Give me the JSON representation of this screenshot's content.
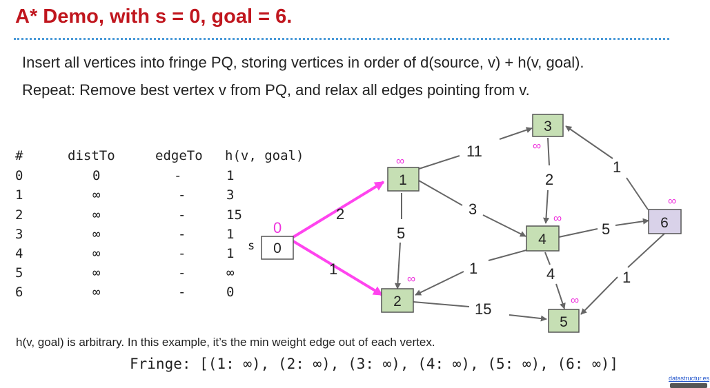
{
  "title": "A* Demo, with s = 0, goal = 6.",
  "instructions": [
    "Insert all vertices into fringe PQ, storing vertices in order of d(source, v) + h(v, goal).",
    "Repeat: Remove best vertex v from PQ, and relax all edges pointing from v."
  ],
  "table": {
    "headers": [
      "#",
      "distTo",
      "edgeTo",
      "h(v, goal)"
    ],
    "rows": [
      {
        "v": "0",
        "distTo": "0",
        "edgeTo": "-",
        "h": "1"
      },
      {
        "v": "1",
        "distTo": "∞",
        "edgeTo": "-",
        "h": "3"
      },
      {
        "v": "2",
        "distTo": "∞",
        "edgeTo": "-",
        "h": "15"
      },
      {
        "v": "3",
        "distTo": "∞",
        "edgeTo": "-",
        "h": "1"
      },
      {
        "v": "4",
        "distTo": "∞",
        "edgeTo": "-",
        "h": "1"
      },
      {
        "v": "5",
        "distTo": "∞",
        "edgeTo": "-",
        "h": "∞"
      },
      {
        "v": "6",
        "distTo": "∞",
        "edgeTo": "-",
        "h": "0"
      }
    ]
  },
  "graph": {
    "source_label": "s",
    "vertices": [
      {
        "id": "0",
        "dist": "0"
      },
      {
        "id": "1",
        "dist": "∞"
      },
      {
        "id": "2",
        "dist": "∞"
      },
      {
        "id": "3",
        "dist": "∞"
      },
      {
        "id": "4",
        "dist": "∞"
      },
      {
        "id": "5",
        "dist": "∞"
      },
      {
        "id": "6",
        "dist": "∞"
      }
    ],
    "edges": [
      {
        "from": "0",
        "to": "1",
        "weight": "2",
        "highlighted": true
      },
      {
        "from": "0",
        "to": "2",
        "weight": "1",
        "highlighted": true
      },
      {
        "from": "1",
        "to": "3",
        "weight": "11",
        "highlighted": false
      },
      {
        "from": "1",
        "to": "4",
        "weight": "3",
        "highlighted": false
      },
      {
        "from": "1",
        "to": "2",
        "weight": "5",
        "highlighted": false
      },
      {
        "from": "3",
        "to": "4",
        "weight": "2",
        "highlighted": false
      },
      {
        "from": "4",
        "to": "2",
        "weight": "1",
        "highlighted": false
      },
      {
        "from": "4",
        "to": "6",
        "weight": "5",
        "highlighted": false
      },
      {
        "from": "4",
        "to": "5",
        "weight": "4",
        "highlighted": false
      },
      {
        "from": "6",
        "to": "3",
        "weight": "1",
        "highlighted": false
      },
      {
        "from": "6",
        "to": "5",
        "weight": "1",
        "highlighted": false
      },
      {
        "from": "2",
        "to": "5",
        "weight": "15",
        "highlighted": false
      }
    ]
  },
  "colors": {
    "title": "#c0161e",
    "highlight_edge": "#ff44ee",
    "dist_label": "#ee33dd",
    "node_green": "#c6dfb4",
    "node_purple": "#d9d2e9",
    "edge": "#666666",
    "divider": "#4b9ad8"
  },
  "footnote": "h(v, goal) is arbitrary. In this example, it’s the min weight edge out of each vertex.",
  "fringe": "Fringe: [(1: ∞), (2: ∞), (3: ∞), (4: ∞), (5: ∞), (6: ∞)]",
  "credit": "datastructur.es"
}
